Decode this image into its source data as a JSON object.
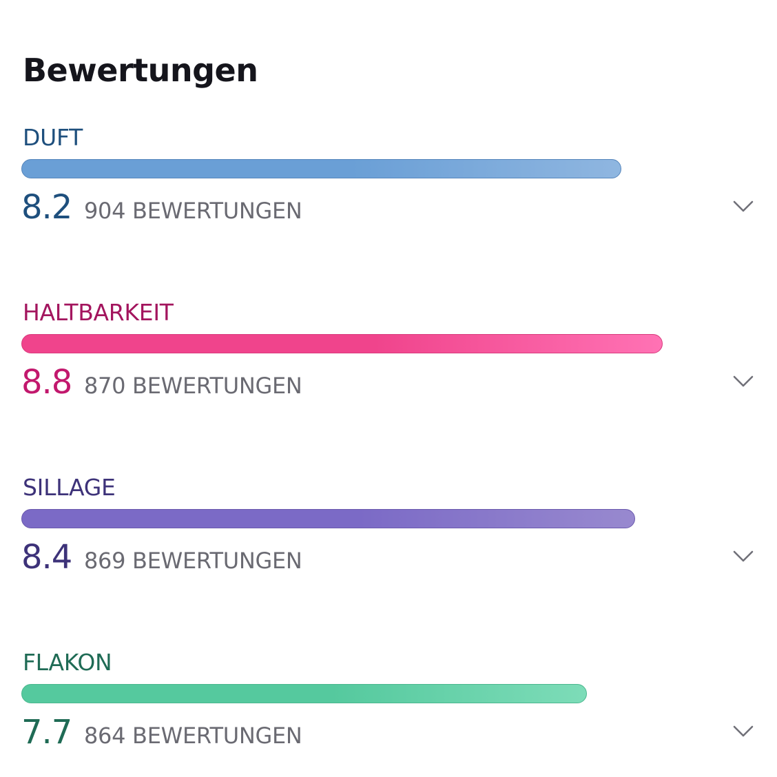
{
  "header": {
    "title": "Bewertungen"
  },
  "ratings": [
    {
      "label": "DUFT",
      "score": "8.2",
      "score_value": 8.2,
      "count_text": "904 BEWERTUNGEN",
      "label_color": "#1e4f7d",
      "score_color": "#1e4f7d",
      "bar_color_start": "#6a9fd6",
      "bar_color_end": "#8fb6e0",
      "bar_border": "#5585bb",
      "expand_icon": "chevron-down-icon"
    },
    {
      "label": "HALTBARKEIT",
      "score": "8.8",
      "score_value": 8.8,
      "count_text": "870 BEWERTUNGEN",
      "label_color": "#a3155e",
      "score_color": "#c2186d",
      "bar_color_start": "#f0448c",
      "bar_color_end": "#ff72b4",
      "bar_border": "#d83a7c",
      "expand_icon": "chevron-down-icon"
    },
    {
      "label": "SILLAGE",
      "score": "8.4",
      "score_value": 8.4,
      "count_text": "869 BEWERTUNGEN",
      "label_color": "#3d3279",
      "score_color": "#3d3279",
      "bar_color_start": "#7b6ac6",
      "bar_color_end": "#9889cf",
      "bar_border": "#6a59ad",
      "expand_icon": "chevron-down-icon"
    },
    {
      "label": "FLAKON",
      "score": "7.7",
      "score_value": 7.7,
      "count_text": "864 BEWERTUNGEN",
      "label_color": "#1f6b55",
      "score_color": "#1f6b55",
      "bar_color_start": "#55c99e",
      "bar_color_end": "#7ddcb8",
      "bar_border": "#4ab78e",
      "expand_icon": "chevron-down-icon"
    }
  ]
}
